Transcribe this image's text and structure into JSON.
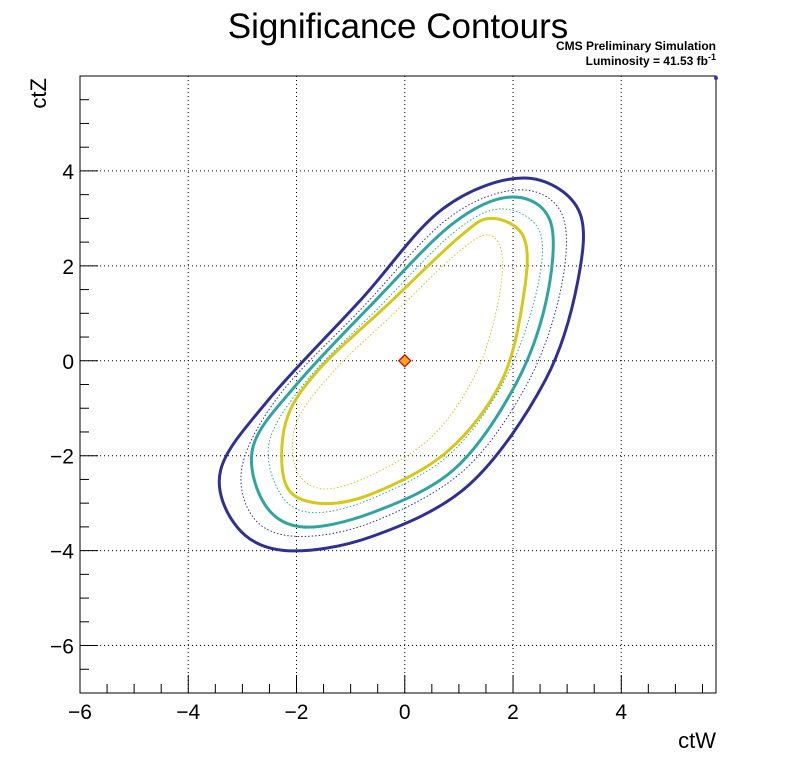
{
  "chart_data": {
    "type": "contour",
    "title": "Significance Contours",
    "xlabel": "ctW",
    "ylabel": "ctZ",
    "xlim": [
      -6,
      5.75
    ],
    "ylim": [
      -7,
      6
    ],
    "x_ticks": [
      -6,
      -4,
      -2,
      0,
      2,
      4
    ],
    "y_ticks": [
      -6,
      -4,
      -2,
      0,
      2,
      4
    ],
    "x_tick_labels": [
      "−6",
      "−4",
      "−2",
      "0",
      "2",
      "4"
    ],
    "y_tick_labels": [
      "−6",
      "−4",
      "−2",
      "0",
      "2",
      "4"
    ],
    "grid": true,
    "annotations": {
      "line1": "CMS Preliminary Simulation",
      "line2_prefix": "Luminosity = 41.53 fb",
      "line2_sup": "-1"
    },
    "best_fit": {
      "x": 0.0,
      "y": 0.0
    },
    "contours": [
      {
        "color": "#d4c91a",
        "style": "solid",
        "width": 3,
        "points": [
          [
            1.6,
            3.0
          ],
          [
            2.2,
            2.6
          ],
          [
            2.2,
            1.4
          ],
          [
            1.8,
            -0.4
          ],
          [
            0.8,
            -1.9
          ],
          [
            -0.6,
            -2.8
          ],
          [
            -1.6,
            -3.0
          ],
          [
            -2.2,
            -2.6
          ],
          [
            -2.2,
            -1.3
          ],
          [
            -1.6,
            -0.2
          ],
          [
            -0.3,
            1.2
          ],
          [
            1.0,
            2.6
          ]
        ]
      },
      {
        "color": "#d4c91a",
        "style": "dotted",
        "width": 1,
        "points": [
          [
            1.55,
            2.65
          ],
          [
            1.8,
            2.2
          ],
          [
            1.7,
            1.1
          ],
          [
            1.3,
            -0.3
          ],
          [
            0.5,
            -1.6
          ],
          [
            -0.6,
            -2.4
          ],
          [
            -1.5,
            -2.7
          ],
          [
            -2.0,
            -2.3
          ],
          [
            -2.0,
            -1.3
          ],
          [
            -1.3,
            -0.2
          ],
          [
            -0.2,
            1.0
          ],
          [
            1.0,
            2.3
          ]
        ]
      },
      {
        "color": "#2fa5a0",
        "style": "solid",
        "width": 3,
        "points": [
          [
            2.0,
            3.45
          ],
          [
            2.7,
            2.9
          ],
          [
            2.6,
            1.2
          ],
          [
            2.0,
            -0.6
          ],
          [
            0.9,
            -2.3
          ],
          [
            -0.6,
            -3.2
          ],
          [
            -1.9,
            -3.5
          ],
          [
            -2.6,
            -3.0
          ],
          [
            -2.8,
            -1.8
          ],
          [
            -2.0,
            -0.5
          ],
          [
            -0.6,
            1.2
          ],
          [
            0.9,
            2.9
          ]
        ]
      },
      {
        "color": "#2fa5a0",
        "style": "dotted",
        "width": 1,
        "points": [
          [
            1.8,
            3.2
          ],
          [
            2.5,
            2.7
          ],
          [
            2.4,
            1.3
          ],
          [
            1.8,
            -0.5
          ],
          [
            0.8,
            -2.0
          ],
          [
            -0.6,
            -2.9
          ],
          [
            -1.7,
            -3.2
          ],
          [
            -2.3,
            -2.8
          ],
          [
            -2.5,
            -1.7
          ],
          [
            -1.8,
            -0.4
          ],
          [
            -0.5,
            1.1
          ],
          [
            0.9,
            2.7
          ]
        ]
      },
      {
        "color": "#2f3091",
        "style": "dotted",
        "width": 1,
        "points": [
          [
            2.1,
            3.6
          ],
          [
            2.9,
            3.1
          ],
          [
            2.9,
            1.6
          ],
          [
            2.3,
            -0.4
          ],
          [
            1.1,
            -2.3
          ],
          [
            -0.6,
            -3.4
          ],
          [
            -2.0,
            -3.7
          ],
          [
            -2.8,
            -3.3
          ],
          [
            -3.0,
            -2.2
          ],
          [
            -2.3,
            -0.7
          ],
          [
            -0.8,
            1.1
          ],
          [
            0.8,
            3.0
          ]
        ]
      },
      {
        "color": "#2f3091",
        "style": "solid",
        "width": 3,
        "points": [
          [
            2.2,
            3.85
          ],
          [
            3.2,
            3.2
          ],
          [
            3.2,
            1.7
          ],
          [
            2.6,
            -0.4
          ],
          [
            1.2,
            -2.6
          ],
          [
            -0.6,
            -3.7
          ],
          [
            -2.2,
            -4.0
          ],
          [
            -3.1,
            -3.5
          ],
          [
            -3.4,
            -2.3
          ],
          [
            -2.5,
            -0.8
          ],
          [
            -0.8,
            1.3
          ],
          [
            0.7,
            3.2
          ]
        ]
      }
    ],
    "colors": {
      "axis": "#000000",
      "grid": "#000000",
      "best_fit_fill": "#f5a623",
      "best_fit_edge": "#cc0000",
      "corner_marker": "#3a3aa8"
    }
  }
}
